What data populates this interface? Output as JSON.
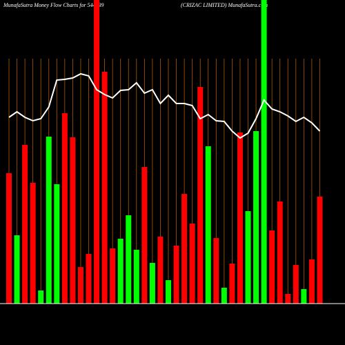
{
  "chart_data": {
    "type": "bar",
    "title": "MunafaSutra  Money Flow  Charts for 544439",
    "subtitle": "(CRIZAC LIMITED) MunafaSutra.com",
    "categories": [
      null,
      null,
      null,
      null,
      null,
      null,
      null,
      null,
      null,
      null,
      null,
      null,
      null,
      null,
      null,
      null,
      null,
      null,
      null,
      null,
      null,
      null,
      null,
      null,
      null,
      null,
      null,
      null,
      null,
      null,
      null,
      null,
      null,
      null,
      null,
      null,
      null,
      null,
      null,
      null
    ],
    "ylim": [
      0,
      440
    ],
    "bars": {
      "values": [
        189,
        99,
        230,
        175,
        19,
        242,
        173,
        276,
        241,
        53,
        72,
        440,
        336,
        80,
        94,
        128,
        78,
        198,
        59,
        97,
        34,
        84,
        159,
        116,
        314,
        228,
        95,
        23,
        58,
        248,
        134,
        250,
        440,
        106,
        148,
        14,
        56,
        21,
        64,
        155
      ],
      "colors": [
        "#ff0000",
        "#00ff00",
        "#ff0000",
        "#ff0000",
        "#00ff00",
        "#00ff00",
        "#00ff00",
        "#ff0000",
        "#ff0000",
        "#ff0000",
        "#ff0000",
        "#ff0000",
        "#ff0000",
        "#ff0000",
        "#00ff00",
        "#00ff00",
        "#00ff00",
        "#ff0000",
        "#00ff00",
        "#ff0000",
        "#00ff00",
        "#ff0000",
        "#ff0000",
        "#ff0000",
        "#ff0000",
        "#00ff00",
        "#ff0000",
        "#00ff00",
        "#ff0000",
        "#ff0000",
        "#00ff00",
        "#00ff00",
        "#00ff00",
        "#ff0000",
        "#ff0000",
        "#ff0000",
        "#ff0000",
        "#00ff00",
        "#ff0000",
        "#ff0000"
      ]
    },
    "line": {
      "color": "#ffffff",
      "values": [
        270,
        278,
        270,
        265,
        268,
        285,
        324,
        325,
        327,
        333,
        330,
        310,
        303,
        298,
        309,
        310,
        320,
        305,
        310,
        290,
        302,
        290,
        290,
        287,
        268,
        274,
        265,
        264,
        250,
        240,
        247,
        268,
        295,
        282,
        278,
        272,
        264,
        270,
        262,
        250
      ]
    },
    "grid_color": "#b35900"
  }
}
